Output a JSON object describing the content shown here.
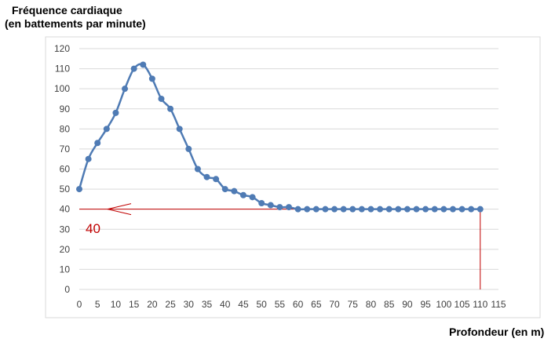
{
  "chart_data": {
    "type": "line",
    "ylabel": [
      "Fréquence cardiaque",
      "(en battements par minute)"
    ],
    "xlabel": "Profondeur (en m)",
    "xlim": [
      0,
      115
    ],
    "ylim": [
      0,
      120
    ],
    "xticks": [
      0,
      5,
      10,
      15,
      20,
      25,
      30,
      35,
      40,
      45,
      50,
      55,
      60,
      65,
      70,
      75,
      80,
      85,
      90,
      95,
      100,
      105,
      110,
      115
    ],
    "yticks": [
      0,
      10,
      20,
      30,
      40,
      50,
      60,
      70,
      80,
      90,
      100,
      110,
      120
    ],
    "grid": "horizontal",
    "series": [
      {
        "color": "#4f7bb4",
        "x": [
          0,
          2.5,
          5,
          7.5,
          10,
          12.5,
          15,
          17.5,
          20,
          22.5,
          25,
          27.5,
          30,
          32.5,
          35,
          37.5,
          40,
          42.5,
          45,
          47.5,
          50,
          52.5,
          55,
          57.5,
          60,
          62.5,
          65,
          67.5,
          70,
          72.5,
          75,
          77.5,
          80,
          82.5,
          85,
          87.5,
          90,
          92.5,
          95,
          97.5,
          100,
          102.5,
          105,
          107.5,
          110
        ],
        "y": [
          50,
          65,
          73,
          80,
          88,
          100,
          110,
          112,
          105,
          95,
          90,
          80,
          70,
          60,
          56,
          55,
          50,
          49,
          47,
          46,
          43,
          42,
          41,
          41,
          40,
          40,
          40,
          40,
          40,
          40,
          40,
          40,
          40,
          40,
          40,
          40,
          40,
          40,
          40,
          40,
          40,
          40,
          40,
          40,
          40
        ]
      }
    ],
    "annotations": [
      {
        "type": "hline",
        "y": 40,
        "x_from": 0,
        "x_to": 110,
        "color": "#c00000"
      },
      {
        "type": "vline",
        "x": 110,
        "y_from": 40,
        "y_to": 0,
        "color": "#c00000"
      },
      {
        "type": "arrow",
        "direction": "left",
        "y": 40,
        "color": "#c00000"
      },
      {
        "type": "text",
        "text": "40",
        "color": "#c00000"
      }
    ]
  }
}
